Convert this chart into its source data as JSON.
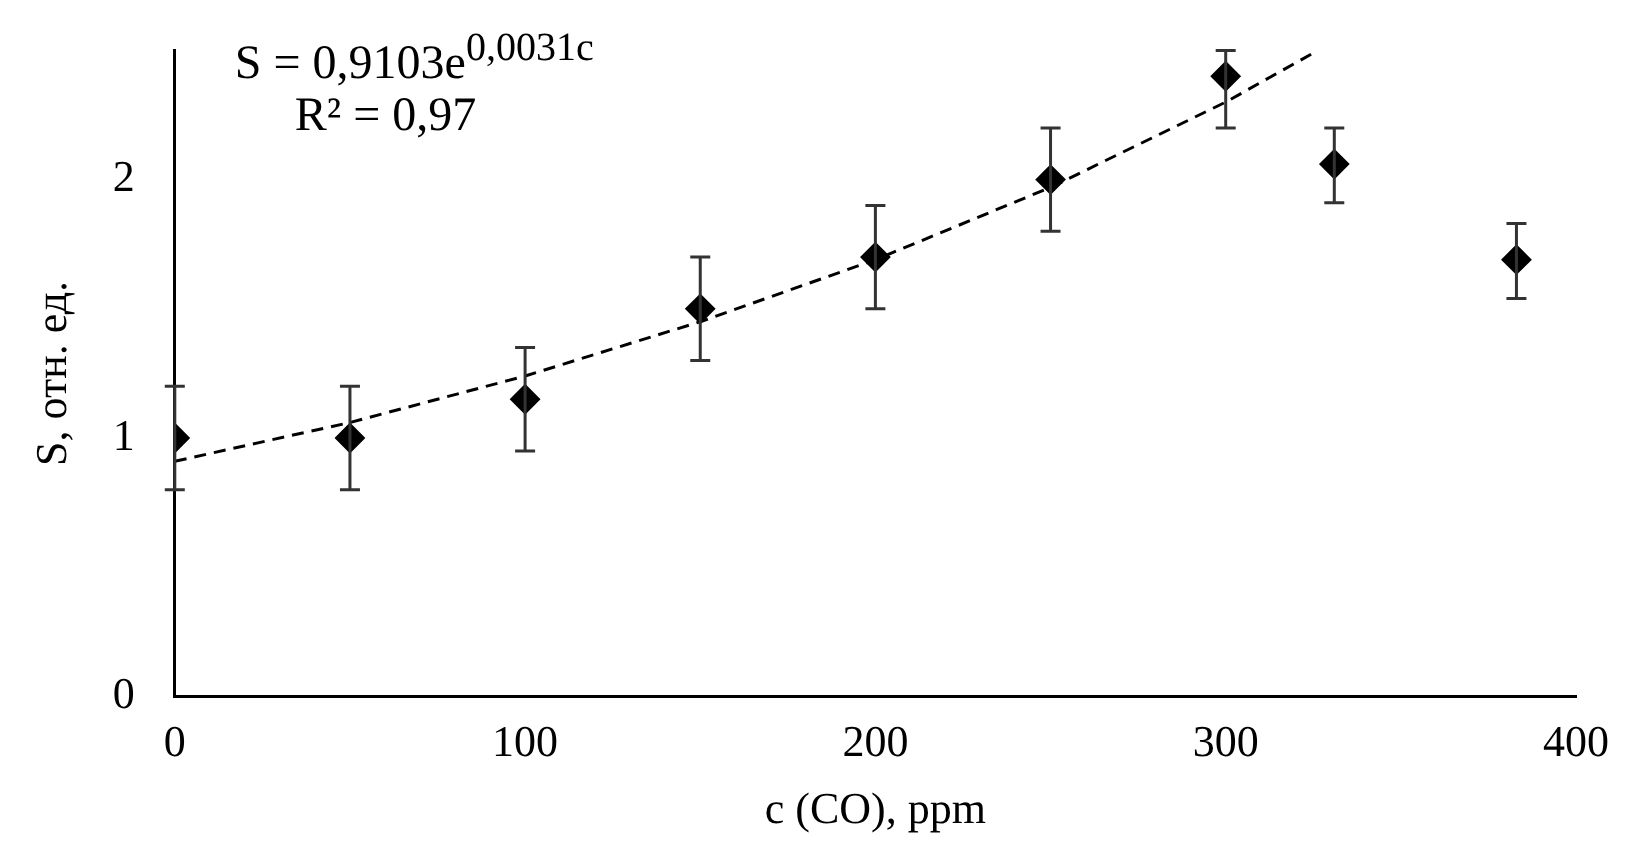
{
  "chart_data": {
    "type": "scatter",
    "xlabel": "c (CO), ppm",
    "ylabel": "S, отн. ед.",
    "annotations": [
      "S = 0,9103e$^{0,0031c}$",
      "R² = 0,97"
    ],
    "xlim": [
      0,
      400
    ],
    "xticks": [
      0,
      100,
      200,
      300,
      400
    ],
    "ylim": [
      0,
      2.5
    ],
    "yticks": [
      0,
      1,
      2
    ],
    "grid": false,
    "legend": false,
    "marker": "diamond",
    "series": [
      {
        "color": "#000000",
        "x": [
          0,
          50,
          100,
          150,
          200,
          250,
          300,
          331,
          383
        ],
        "values": [
          1.0,
          1.0,
          1.15,
          1.5,
          1.7,
          2.0,
          2.4,
          2.06,
          1.69
        ],
        "errors": [
          [
            0.8,
            1.2
          ],
          [
            0.8,
            1.2
          ],
          [
            0.95,
            1.35
          ],
          [
            1.3,
            1.7
          ],
          [
            1.5,
            1.9
          ],
          [
            1.8,
            2.2
          ],
          [
            2.2,
            2.5
          ],
          [
            1.91,
            2.2
          ],
          [
            1.54,
            1.83
          ]
        ]
      },
      {
        "type": "line",
        "color": "#000000",
        "line_style": "dashed",
        "marker": "none",
        "x": [
          0,
          50,
          100,
          150,
          200,
          250,
          300,
          325
        ],
        "values": [
          0.91,
          1.06,
          1.24,
          1.45,
          1.69,
          1.97,
          2.3,
          2.49
        ]
      }
    ]
  }
}
